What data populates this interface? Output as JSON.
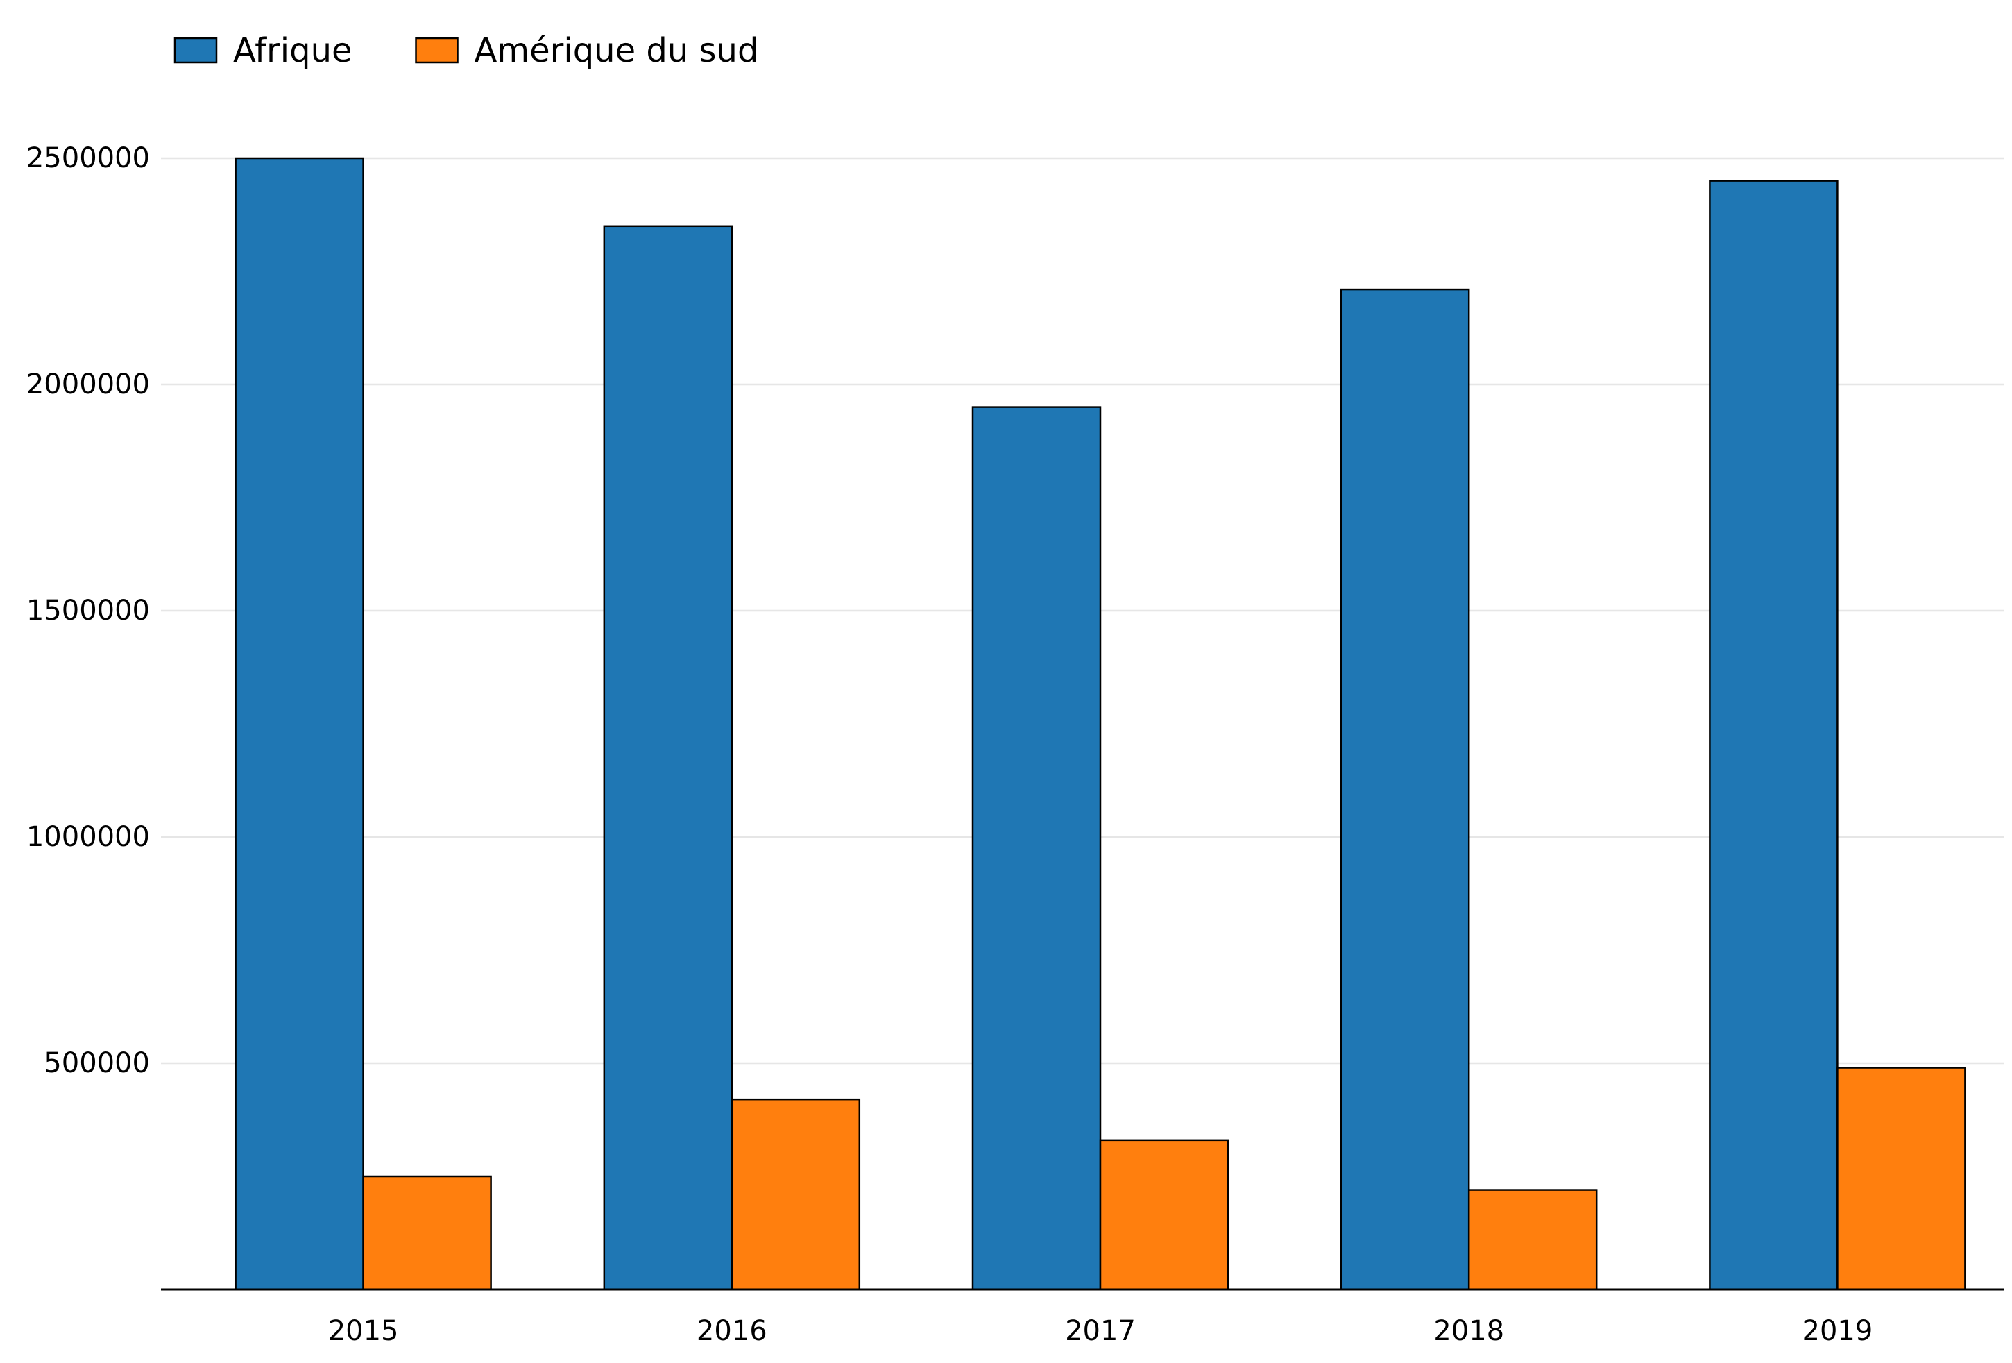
{
  "chart_data": {
    "type": "bar",
    "title": "",
    "xlabel": "",
    "ylabel": "",
    "categories": [
      "2015",
      "2016",
      "2017",
      "2018",
      "2019"
    ],
    "series": [
      {
        "name": "Afrique",
        "values": [
          2500000,
          2350000,
          1950000,
          2210000,
          2450000
        ],
        "color": "#1f77b4"
      },
      {
        "name": "Amérique du sud",
        "values": [
          250000,
          420000,
          330000,
          220000,
          490000
        ],
        "color": "#ff7f0e"
      }
    ],
    "ylim": [
      0,
      2500000
    ],
    "yticks": [
      500000,
      1000000,
      1500000,
      2000000,
      2500000
    ],
    "ytick_labels": [
      "500000",
      "1000000",
      "1500000",
      "2000000",
      "2500000"
    ],
    "grid": "horizontal",
    "legend_position": "top-left",
    "gridline_color": "#e6e6e6",
    "bar_edge_color": "#000000"
  }
}
